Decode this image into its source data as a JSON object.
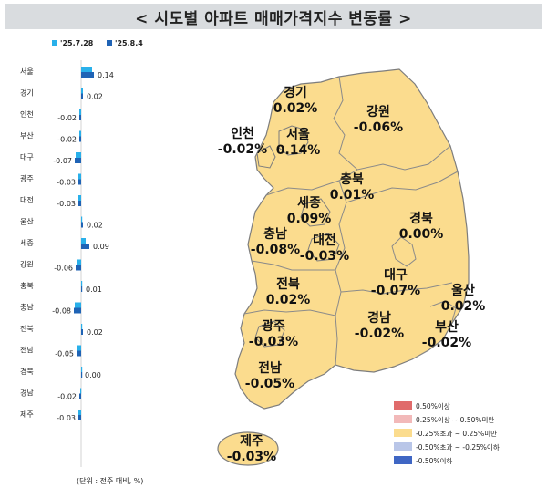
{
  "title": "< 시도별 아파트 매매가격지수 변동률 >",
  "footnote": "(단위 : 전주 대비, %)",
  "colors": {
    "series_prev": "#29b0ea",
    "series_curr": "#1f63b5",
    "map_fill": "#fbdc8e",
    "map_stroke": "#7d7d7d",
    "legend_1": "#e06b6b",
    "legend_2": "#f2b9b9",
    "legend_3": "#fbdc8e",
    "legend_4": "#b9c6e8",
    "legend_5": "#3f66c4"
  },
  "chart_data": [
    {
      "type": "bar",
      "orientation": "horizontal",
      "categories": [
        "서울",
        "경기",
        "인천",
        "부산",
        "대구",
        "광주",
        "대전",
        "울산",
        "세종",
        "강원",
        "충북",
        "충남",
        "전북",
        "전남",
        "경북",
        "경남",
        "제주"
      ],
      "series": [
        {
          "name": "'25.7.28",
          "values": [
            0.12,
            0.02,
            -0.02,
            -0.02,
            -0.06,
            -0.03,
            -0.03,
            0.01,
            0.05,
            -0.04,
            0.01,
            -0.07,
            0.01,
            -0.05,
            0.0,
            -0.01,
            -0.03
          ]
        },
        {
          "name": "'25.8.4",
          "values": [
            0.14,
            0.02,
            -0.02,
            -0.02,
            -0.07,
            -0.03,
            -0.03,
            0.02,
            0.09,
            -0.06,
            0.01,
            -0.08,
            0.02,
            -0.05,
            0.0,
            -0.02,
            -0.03
          ]
        }
      ],
      "value_labels": [
        "0.14",
        "0.02",
        "-0.02",
        "-0.02",
        "-0.07",
        "-0.03",
        "-0.03",
        "0.02",
        "0.09",
        "-0.06",
        "0.01",
        "-0.08",
        "0.02",
        "-0.05",
        "0.00",
        "-0.02",
        "-0.03"
      ],
      "legend": "top"
    },
    {
      "type": "choropleth-map",
      "regions": [
        {
          "name": "경기",
          "value": "0.02%"
        },
        {
          "name": "강원",
          "value": "-0.06%"
        },
        {
          "name": "인천",
          "value": "-0.02%"
        },
        {
          "name": "서울",
          "value": "0.14%"
        },
        {
          "name": "충북",
          "value": "0.01%"
        },
        {
          "name": "세종",
          "value": "0.09%"
        },
        {
          "name": "경북",
          "value": "0.00%"
        },
        {
          "name": "충남",
          "value": "-0.08%"
        },
        {
          "name": "대전",
          "value": "-0.03%"
        },
        {
          "name": "대구",
          "value": "-0.07%"
        },
        {
          "name": "전북",
          "value": "0.02%"
        },
        {
          "name": "울산",
          "value": "0.02%"
        },
        {
          "name": "광주",
          "value": "-0.03%"
        },
        {
          "name": "경남",
          "value": "-0.02%"
        },
        {
          "name": "부산",
          "value": "-0.02%"
        },
        {
          "name": "전남",
          "value": "-0.05%"
        },
        {
          "name": "제주",
          "value": "-0.03%"
        }
      ],
      "legend": [
        {
          "label": "0.50%이상",
          "color": "#e06b6b"
        },
        {
          "label": "0.25%이상 ~ 0.50%미만",
          "color": "#f2b9b9"
        },
        {
          "label": "-0.25%초과 ~ 0.25%미만",
          "color": "#fbdc8e"
        },
        {
          "label": "-0.50%초과 ~ -0.25%이하",
          "color": "#b9c6e8"
        },
        {
          "label": "-0.50%이하",
          "color": "#3f66c4"
        }
      ]
    }
  ]
}
